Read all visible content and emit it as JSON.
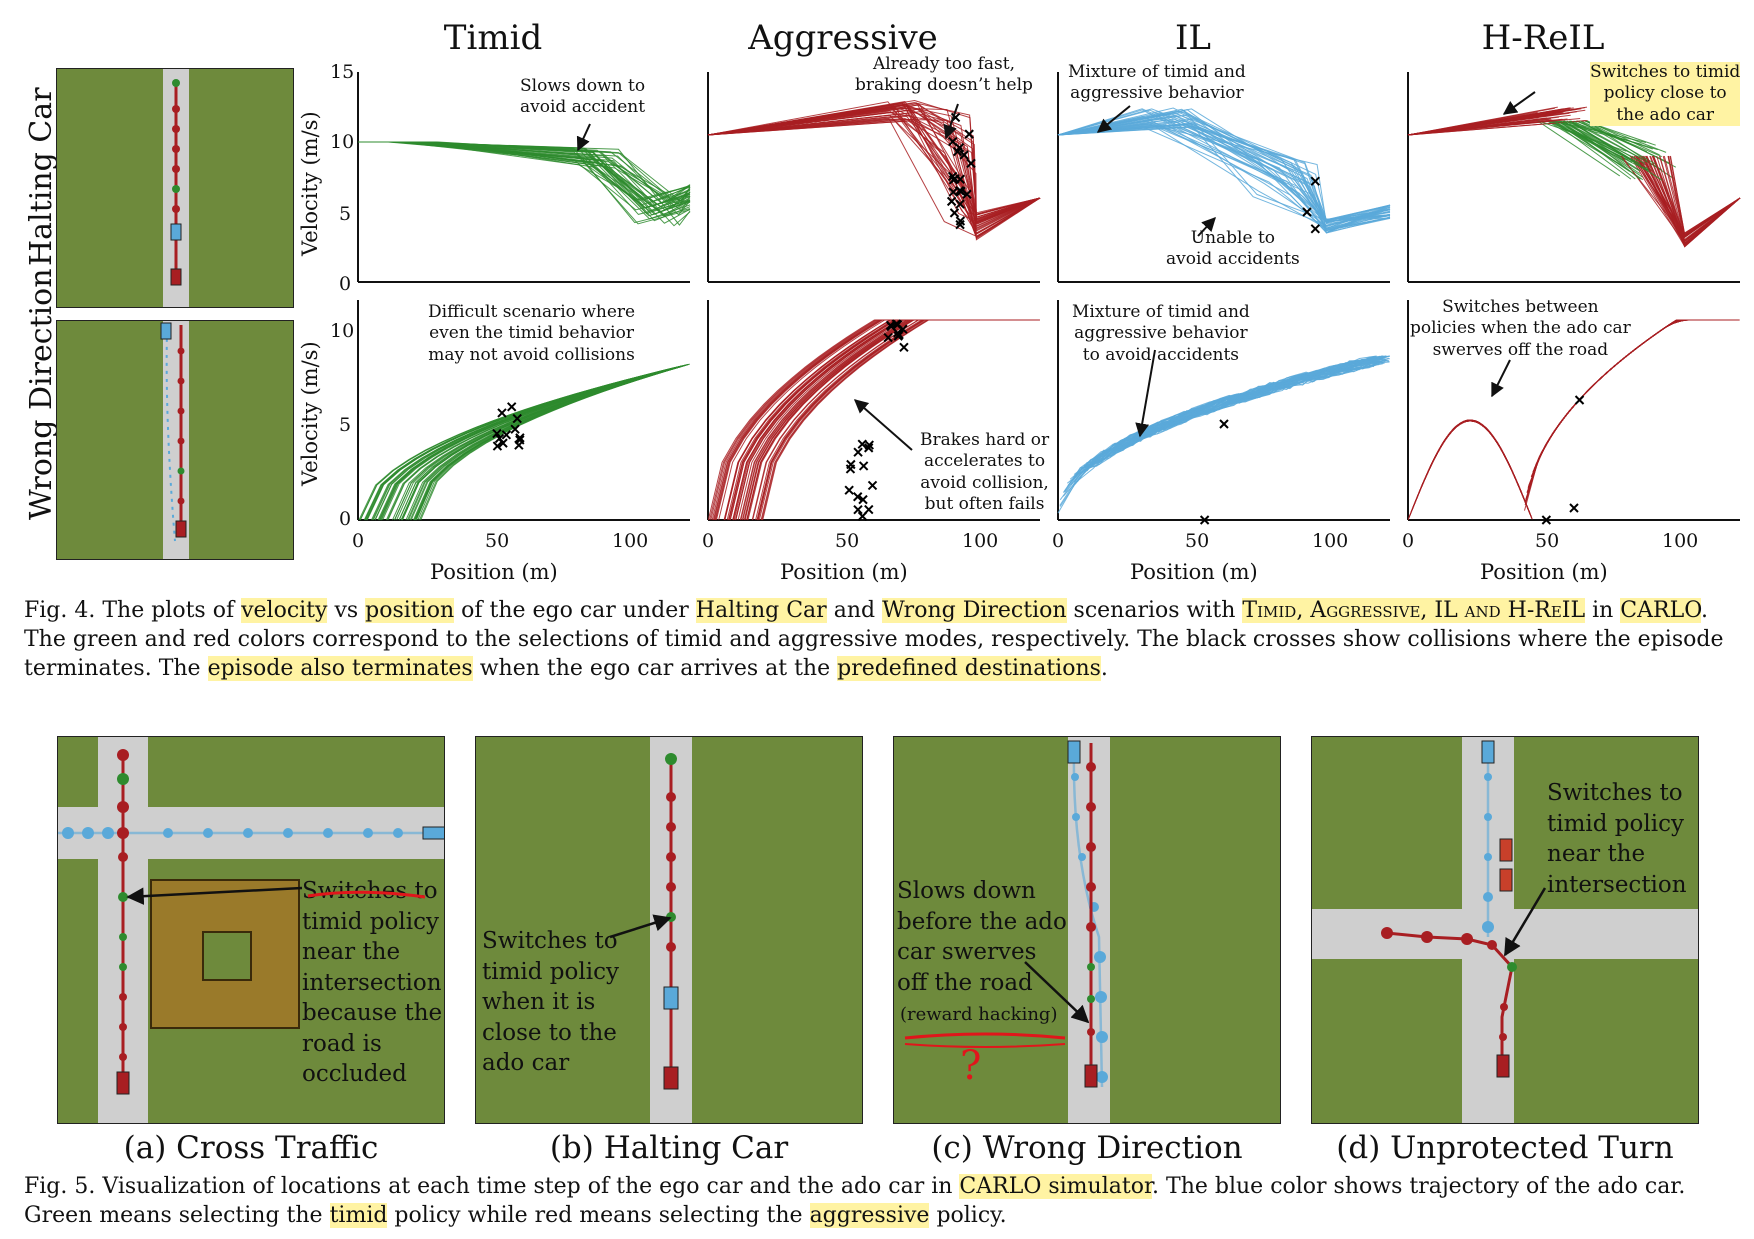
{
  "fig4": {
    "columns": [
      "Timid",
      "Aggressive",
      "IL",
      "H-ReIL"
    ],
    "rows": [
      "Halting Car",
      "Wrong Direction"
    ],
    "ylabel": "Velocity (m/s)",
    "xlabel": "Position (m)",
    "yticks_top": [
      "15",
      "10",
      "5",
      "0"
    ],
    "yticks_bottom": [
      "10",
      "5",
      "0"
    ],
    "xticks": [
      "0",
      "50",
      "100"
    ],
    "annotations": {
      "timid_top": "Slows down to\navoid accident",
      "aggressive_top": "Already too fast,\nbraking doesn’t help",
      "il_top_1": "Mixture of timid and\naggressive behavior",
      "il_top_2": "Unable to\navoid accidents",
      "hreil_top": "Switches to timid\npolicy close to\nthe ado car",
      "timid_bottom": "Difficult scenario where\neven the timid behavior\nmay not avoid collisions",
      "aggressive_bottom": "Brakes hard or\naccelerates to\navoid collision,\nbut often fails",
      "il_bottom": "Mixture of timid and\naggressive behavior\nto avoid accidents",
      "hreil_bottom": "Switches between\npolicies when the ado car\nswerves off the road"
    },
    "caption": {
      "label": "Fig. 4.",
      "parts": [
        {
          "t": "The plots of "
        },
        {
          "t": "velocity",
          "hl": true
        },
        {
          "t": " vs "
        },
        {
          "t": "position",
          "hl": true
        },
        {
          "t": " of the ego car under "
        },
        {
          "t": "Halting Car",
          "hl": true
        },
        {
          "t": " and "
        },
        {
          "t": "Wrong Direction",
          "hl": true
        },
        {
          "t": " scenarios with "
        },
        {
          "t": "Timid, Aggressive, IL and H-ReIL",
          "hl": true,
          "sc": true
        },
        {
          "t": " in "
        },
        {
          "t": "CARLO",
          "hl": true
        },
        {
          "t": ". The green and red colors correspond to the selections of timid and aggressive modes, respectively. The black crosses show collisions where the episode terminates. The "
        },
        {
          "t": "episode also terminates",
          "hl": true
        },
        {
          "t": " when the ego car arrives at the "
        },
        {
          "t": "predefined destinations",
          "hl": true
        },
        {
          "t": "."
        }
      ]
    }
  },
  "fig5": {
    "subcaptions": [
      "(a) Cross Traffic",
      "(b) Halting Car",
      "(c) Wrong Direction",
      "(d) Unprotected Turn"
    ],
    "annotations": {
      "a": "Switches to\ntimid policy\nnear the\nintersection\nbecause the\nroad is\noccluded",
      "b": "Switches to\ntimid policy\nwhen it is\nclose to the\nado car",
      "c": "Slows down\nbefore the ado\ncar swerves\noff the road",
      "c_note": "(reward hacking)",
      "c_mark": "?",
      "d": "Switches to\ntimid policy\nnear the\nintersection"
    },
    "caption": {
      "label": "Fig. 5.",
      "parts": [
        {
          "t": "Visualization of locations at each time step of the ego car and the ado car in "
        },
        {
          "t": "CARLO simulator",
          "hl": true
        },
        {
          "t": ". The blue color shows trajectory of the ado car. Green means selecting the "
        },
        {
          "t": "timid",
          "hl": true
        },
        {
          "t": " policy while red means selecting the "
        },
        {
          "t": "aggressive",
          "hl": true
        },
        {
          "t": " policy."
        }
      ]
    }
  },
  "colors": {
    "timid": "#2e8b2e",
    "aggressive": "#a81e22",
    "il": "#5aa9d9",
    "grass": "#6e8a3c",
    "road": "#cfcfcf",
    "highlight": "#fff3a3",
    "pen": "#e0161b"
  }
}
